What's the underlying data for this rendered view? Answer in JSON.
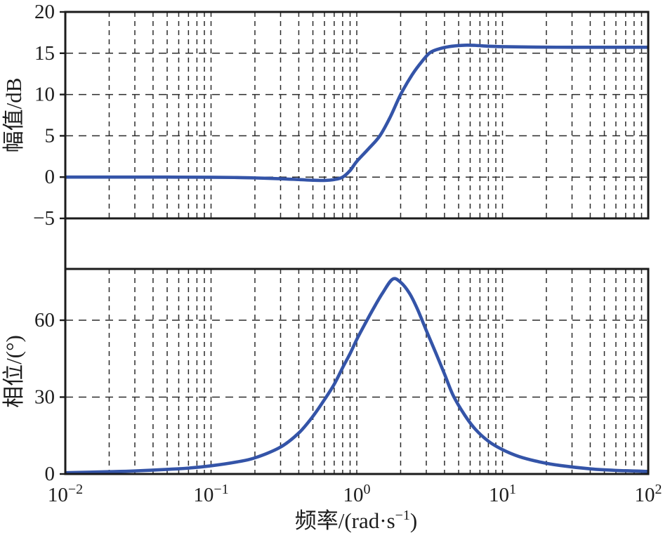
{
  "figure": {
    "background": "#ffffff",
    "curve_color": "#3454a8",
    "grid_color": "#2b2b2b",
    "frame_color": "#1b1b1b",
    "text_color": "#1c1c1c"
  },
  "chart_data": [
    {
      "type": "line",
      "name": "bode-magnitude",
      "title": "",
      "xlabel": "",
      "ylabel": "幅值/dB",
      "x_scale": "log",
      "xlim": [
        0.01,
        100
      ],
      "ylim": [
        -5,
        20
      ],
      "grid": true,
      "legend": "none",
      "yticks": [
        {
          "v": 20,
          "label": "20"
        },
        {
          "v": 15,
          "label": "15"
        },
        {
          "v": 10,
          "label": "10"
        },
        {
          "v": 5,
          "label": "5"
        },
        {
          "v": 0,
          "label": "0"
        },
        {
          "v": -5,
          "label": "−5"
        }
      ],
      "series": [
        {
          "name": "magnitude_dB",
          "x": [
            0.01,
            0.02,
            0.05,
            0.1,
            0.15,
            0.2,
            0.3,
            0.4,
            0.5,
            0.6,
            0.7,
            0.8,
            0.9,
            1.0,
            1.2,
            1.44,
            1.7,
            2.0,
            2.4,
            2.8,
            3.2,
            3.8,
            4.5,
            5.5,
            6.5,
            8,
            10,
            15,
            30,
            60,
            100
          ],
          "y": [
            0,
            0,
            0,
            -0.02,
            -0.05,
            -0.1,
            -0.2,
            -0.3,
            -0.38,
            -0.4,
            -0.3,
            0,
            0.8,
            1.9,
            3.4,
            5.0,
            7.3,
            10.0,
            12.4,
            14.0,
            15.1,
            15.6,
            15.85,
            15.97,
            15.95,
            15.85,
            15.8,
            15.75,
            15.72,
            15.72,
            15.72
          ]
        }
      ]
    },
    {
      "type": "line",
      "name": "bode-phase",
      "title": "",
      "xlabel": "频率/(rad·s⁻¹)",
      "ylabel": "相位/(°)",
      "x_scale": "log",
      "xlim": [
        0.01,
        100
      ],
      "ylim": [
        0,
        80
      ],
      "grid": true,
      "legend": "none",
      "yticks": [
        {
          "v": 60,
          "label": "60"
        },
        {
          "v": 30,
          "label": "30"
        },
        {
          "v": 0,
          "label": "0"
        }
      ],
      "series": [
        {
          "name": "phase_deg",
          "x": [
            0.01,
            0.02,
            0.03,
            0.05,
            0.07,
            0.1,
            0.15,
            0.2,
            0.3,
            0.4,
            0.5,
            0.6,
            0.7,
            0.8,
            0.9,
            1.0,
            1.15,
            1.3,
            1.5,
            1.76,
            2.0,
            2.3,
            2.6,
            3.0,
            3.5,
            4.0,
            4.6,
            5.5,
            6.5,
            8,
            10,
            13,
            18,
            25,
            40,
            60,
            100
          ],
          "y": [
            0.5,
            0.9,
            1.2,
            1.8,
            2.3,
            3.2,
            4.7,
            6.3,
            10.5,
            16,
            22.5,
            29,
            35,
            41.5,
            47,
            52.5,
            59,
            64.5,
            70.5,
            76,
            74.8,
            70.5,
            64.5,
            56,
            47,
            39,
            30.5,
            23,
            17.5,
            12.8,
            9.5,
            6.8,
            4.7,
            3.3,
            2,
            1.4,
            1
          ]
        }
      ]
    }
  ],
  "x_axis": {
    "ticks": [
      {
        "v": 0.01,
        "base": "10",
        "exp": "−2"
      },
      {
        "v": 0.1,
        "base": "10",
        "exp": "−1"
      },
      {
        "v": 1,
        "base": "10",
        "exp": "0"
      },
      {
        "v": 10,
        "base": "10",
        "exp": "1"
      },
      {
        "v": 100,
        "base": "10",
        "exp": "2"
      }
    ],
    "label": {
      "prefix": "频率/(rad·s",
      "sup": "−1",
      "suffix": ")"
    }
  }
}
